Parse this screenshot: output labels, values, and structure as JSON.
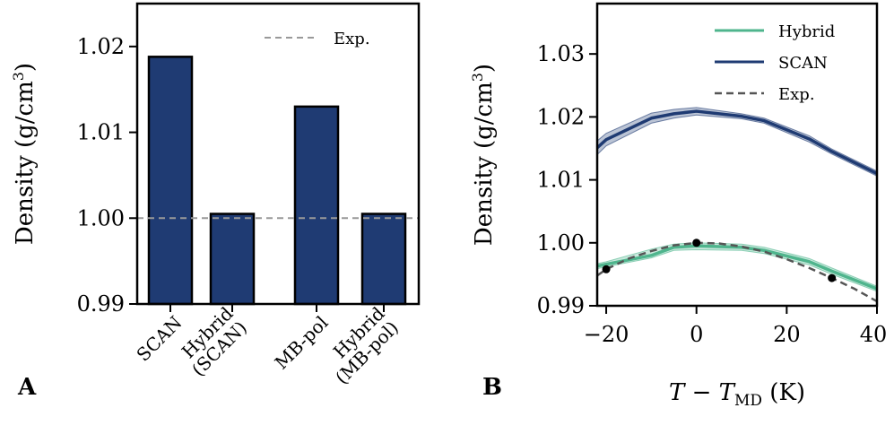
{
  "chart_data": [
    {
      "panel": "A",
      "type": "bar",
      "ylabel": "Density (g/cm³)",
      "ylabel_main": "Density (g/cm",
      "ylabel_sup": "3",
      "ylabel_close": ")",
      "ylim": [
        0.99,
        1.025
      ],
      "yticks": [
        0.99,
        1.0,
        1.01,
        1.02
      ],
      "ytick_labels": [
        "0.99",
        "1.00",
        "1.01",
        "1.02"
      ],
      "categories": [
        {
          "lines": [
            "SCAN"
          ],
          "value": 1.0188
        },
        {
          "lines": [
            "Hybrid",
            "(SCAN)"
          ],
          "value": 1.0005
        },
        {
          "lines": [
            "MB-pol"
          ],
          "value": 1.013
        },
        {
          "lines": [
            "Hybrid",
            "(MB-pol)"
          ],
          "value": 1.0005
        }
      ],
      "reference": {
        "name": "Exp.",
        "value": 1.0
      },
      "bar_color": "#1f3b73",
      "ref_color": "#999999"
    },
    {
      "panel": "B",
      "type": "line",
      "ylabel_main": "Density (g/cm",
      "ylabel_sup": "3",
      "ylabel_close": ")",
      "xlabel_T": "T",
      "xlabel_minus": " − ",
      "xlabel_T2": "T",
      "xlabel_sub": "MD",
      "xlabel_unit": " (K)",
      "xlim": [
        -22,
        40
      ],
      "ylim": [
        0.99,
        1.038
      ],
      "xticks": [
        -20,
        0,
        20,
        40
      ],
      "xtick_labels": [
        "−20",
        "0",
        "20",
        "40"
      ],
      "yticks": [
        0.99,
        1.0,
        1.01,
        1.02,
        1.03
      ],
      "ytick_labels": [
        "0.99",
        "1.00",
        "1.01",
        "1.02",
        "1.03"
      ],
      "series": [
        {
          "name": "Hybrid",
          "color": "#4fb58d",
          "x": [
            -22,
            -20,
            -10,
            -5,
            0,
            10,
            15,
            25,
            30,
            40
          ],
          "y": [
            0.9963,
            0.9966,
            0.998,
            0.9993,
            0.9995,
            0.9993,
            0.9988,
            0.997,
            0.9955,
            0.9927
          ],
          "upper": [
            0.9967,
            0.997,
            0.999,
            0.9998,
            1.0,
            0.9998,
            0.9993,
            0.9975,
            0.996,
            0.9931
          ],
          "lower": [
            0.9959,
            0.9962,
            0.9976,
            0.9988,
            0.9989,
            0.9988,
            0.9983,
            0.9965,
            0.995,
            0.9923
          ]
        },
        {
          "name": "SCAN",
          "color": "#1f3b73",
          "x": [
            -22,
            -20,
            -10,
            -5,
            0,
            10,
            15,
            25,
            30,
            40
          ],
          "y": [
            1.0151,
            1.0164,
            1.0198,
            1.0205,
            1.0209,
            1.0201,
            1.0194,
            1.0165,
            1.0145,
            1.011
          ],
          "upper": [
            1.0162,
            1.0174,
            1.0206,
            1.0212,
            1.0215,
            1.0205,
            1.0198,
            1.017,
            1.0149,
            1.0114
          ],
          "lower": [
            1.014,
            1.0154,
            1.019,
            1.0198,
            1.0203,
            1.0197,
            1.019,
            1.016,
            1.0141,
            1.0106
          ]
        },
        {
          "name": "Exp.",
          "color": "#555555",
          "dashed": true,
          "x": [
            -22,
            -20,
            -15,
            -10,
            -5,
            0,
            5,
            10,
            15,
            20,
            25,
            30,
            35,
            40
          ],
          "y": [
            0.9948,
            0.9958,
            0.9975,
            0.9987,
            0.9996,
            1.0,
            0.9999,
            0.9994,
            0.9986,
            0.9974,
            0.996,
            0.9944,
            0.9927,
            0.9907
          ]
        }
      ],
      "points": {
        "x": [
          -20,
          0,
          30
        ],
        "y": [
          0.9958,
          1.0,
          0.9944
        ],
        "color": "#000000"
      }
    }
  ],
  "labels": {
    "panel_a": "A",
    "panel_b": "B"
  }
}
